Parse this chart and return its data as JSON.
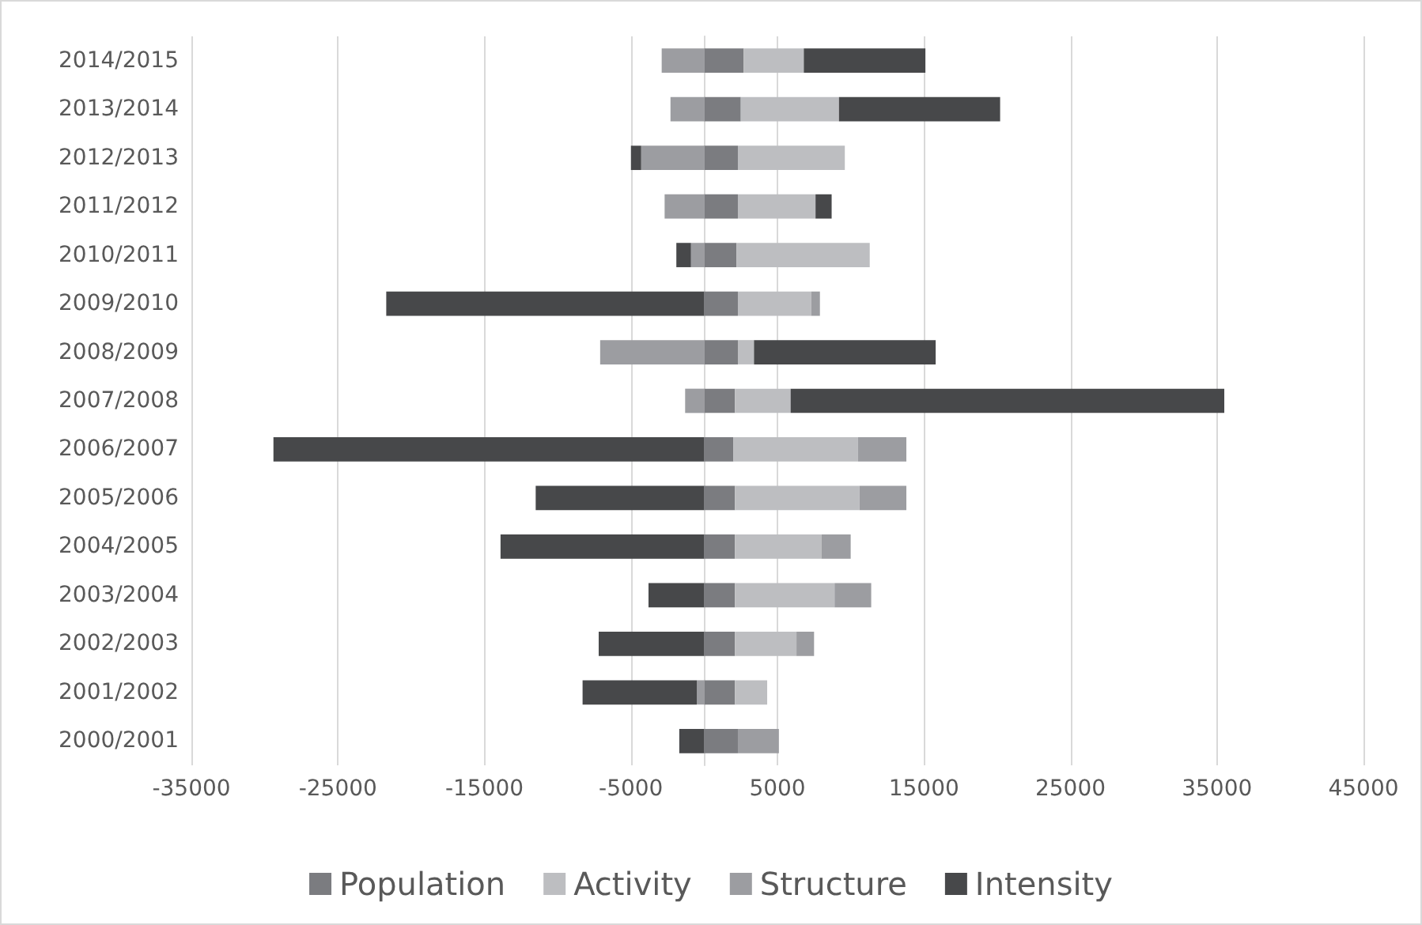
{
  "chart_data": {
    "type": "bar",
    "orientation": "horizontal",
    "stacked": true,
    "categories": [
      "2014/2015",
      "2013/2014",
      "2012/2013",
      "2011/2012",
      "2010/2011",
      "2009/2010",
      "2008/2009",
      "2007/2008",
      "2006/2007",
      "2005/2006",
      "2004/2005",
      "2003/2004",
      "2002/2003",
      "2001/2002",
      "2000/2001"
    ],
    "series": [
      {
        "name": "Population",
        "color": "#7b7c80",
        "values": [
          2700,
          2500,
          2300,
          2300,
          2200,
          2300,
          2300,
          2100,
          2000,
          2100,
          2100,
          2100,
          2100,
          2100,
          2300
        ]
      },
      {
        "name": "Activity",
        "color": "#bdbec1",
        "values": [
          4100,
          6700,
          7300,
          5300,
          9100,
          5000,
          1100,
          3800,
          8500,
          8500,
          5900,
          6800,
          4200,
          2200,
          0
        ]
      },
      {
        "name": "Structure",
        "color": "#9c9da1",
        "values": [
          -2900,
          -2300,
          -4300,
          -2700,
          -900,
          600,
          -7100,
          -1300,
          3300,
          3200,
          2000,
          2500,
          1200,
          -500,
          2800
        ]
      },
      {
        "name": "Intensity",
        "color": "#47484a",
        "values": [
          8300,
          11000,
          -700,
          1100,
          -1000,
          -21700,
          12400,
          29600,
          -29400,
          -11500,
          -13900,
          -3800,
          -7200,
          -7800,
          -1700
        ]
      }
    ],
    "xlim": [
      -35000,
      45000
    ],
    "xticks": [
      -35000,
      -25000,
      -15000,
      -5000,
      5000,
      15000,
      25000,
      35000,
      45000
    ],
    "grid": "x",
    "legend": "bottom"
  }
}
